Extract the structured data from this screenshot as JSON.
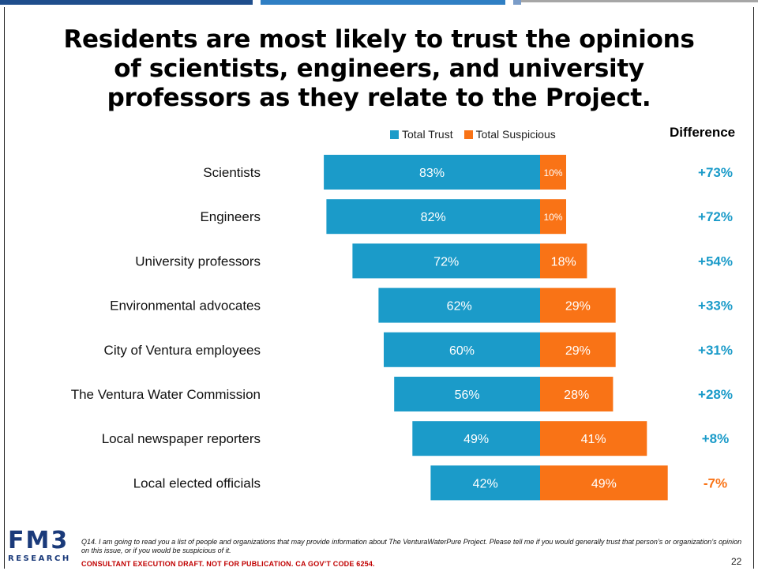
{
  "slide": {
    "title": "Residents are most likely to trust the opinions of scientists, engineers, and university professors as they relate to the Project.",
    "difference_header": "Difference",
    "question": "Q14. I am going to read you a list of people and organizations that may provide information about The VenturaWaterPure Project. Please tell me if you would generally trust that person’s or organization’s opinion on this issue, or if you would be suspicious of it.",
    "notice": "CONSULTANT EXECUTION DRAFT.  NOT FOR PUBLICATION.  CA GOV’T CODE 6254.",
    "page_number": "22",
    "logo": {
      "main": "FM3",
      "sub": "RESEARCH"
    }
  },
  "colors": {
    "trust": "#1b9bc9",
    "suspicious": "#f97316",
    "diff_positive": "#1b9bc9",
    "diff_negative": "#f97316",
    "topbar": [
      "#1f4e8c",
      "#2f7fc4",
      "#7a9cc8",
      "#a6a6a6"
    ]
  },
  "chart_data": {
    "type": "bar",
    "orientation": "horizontal-diverging",
    "categories": [
      "Scientists",
      "Engineers",
      "University professors",
      "Environmental advocates",
      "City of Ventura employees",
      "The Ventura Water Commission",
      "Local newspaper reporters",
      "Local elected officials"
    ],
    "series": [
      {
        "name": "Total Trust",
        "values": [
          83,
          82,
          72,
          62,
          60,
          56,
          49,
          42
        ],
        "labels": [
          "83%",
          "82%",
          "72%",
          "62%",
          "60%",
          "56%",
          "49%",
          "42%"
        ]
      },
      {
        "name": "Total Suspicious",
        "values": [
          10,
          10,
          18,
          29,
          29,
          28,
          41,
          49
        ],
        "labels": [
          "10%",
          "10%",
          "18%",
          "29%",
          "29%",
          "28%",
          "41%",
          "49%"
        ]
      }
    ],
    "difference": [
      "+73%",
      "+72%",
      "+54%",
      "+33%",
      "+31%",
      "+28%",
      "+8%",
      "-7%"
    ],
    "difference_values": [
      73,
      72,
      54,
      33,
      31,
      28,
      8,
      -7
    ],
    "unit": "%",
    "legend_position": "top"
  }
}
